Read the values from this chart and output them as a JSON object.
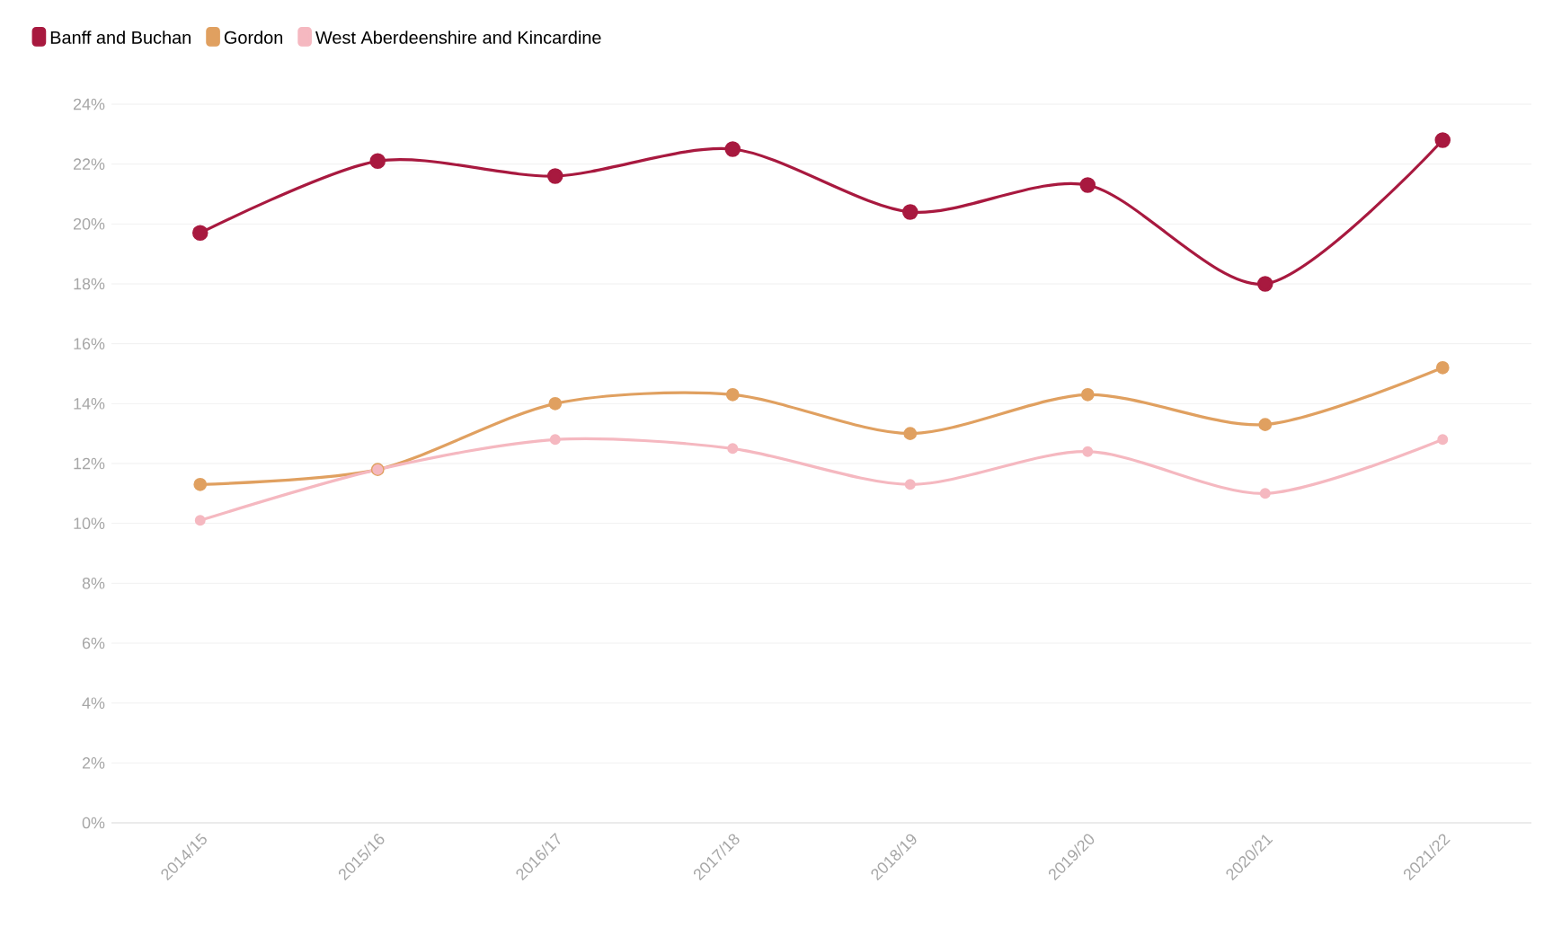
{
  "chart_data": {
    "type": "line",
    "categories": [
      "2014/15",
      "2015/16",
      "2016/17",
      "2017/18",
      "2018/19",
      "2019/20",
      "2020/21",
      "2021/22"
    ],
    "series": [
      {
        "name": "Banff and Buchan",
        "color": "#a8193f",
        "values": [
          19.7,
          22.1,
          21.6,
          22.5,
          20.4,
          21.3,
          18.0,
          22.8
        ]
      },
      {
        "name": "Gordon",
        "color": "#e0a060",
        "values": [
          11.3,
          11.8,
          14.0,
          14.3,
          13.0,
          14.3,
          13.3,
          15.2
        ]
      },
      {
        "name": "West Aberdeenshire and Kincardine",
        "color": "#f5b8c0",
        "values": [
          10.1,
          11.8,
          12.8,
          12.5,
          11.3,
          12.4,
          11.0,
          12.8
        ]
      }
    ],
    "ylim": [
      0,
      24
    ],
    "yticks": [
      {
        "value": 0,
        "label": "0%"
      },
      {
        "value": 2,
        "label": "2%"
      },
      {
        "value": 4,
        "label": "4%"
      },
      {
        "value": 6,
        "label": "6%"
      },
      {
        "value": 8,
        "label": "8%"
      },
      {
        "value": 10,
        "label": "10%"
      },
      {
        "value": 12,
        "label": "12%"
      },
      {
        "value": 14,
        "label": "14%"
      },
      {
        "value": 16,
        "label": "16%"
      },
      {
        "value": 18,
        "label": "18%"
      },
      {
        "value": 20,
        "label": "20%"
      },
      {
        "value": 22,
        "label": "22%"
      },
      {
        "value": 24,
        "label": "24%"
      }
    ],
    "grid": "y",
    "legend": "top left",
    "marker": "circle"
  }
}
